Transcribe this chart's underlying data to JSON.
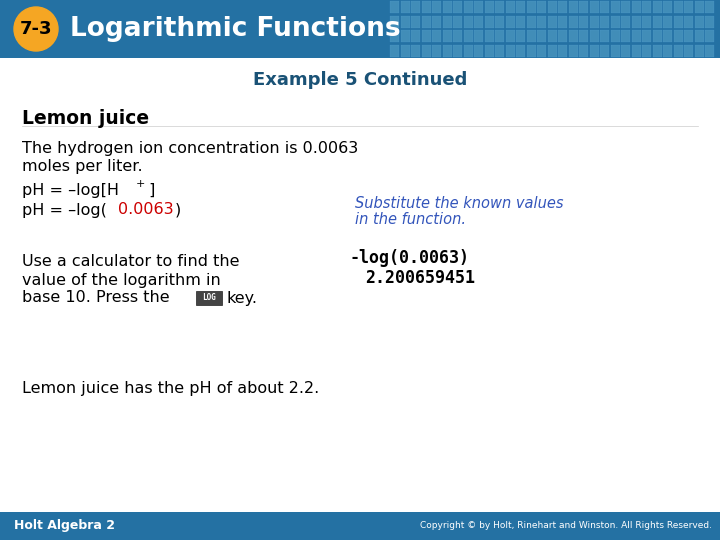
{
  "header_bg_color": "#2471A3",
  "header_text": "Logarithmic Functions",
  "header_text_color": "#FFFFFF",
  "badge_bg_color": "#F5A623",
  "badge_text": "7-3",
  "badge_text_color": "#000000",
  "subtitle_text": "Example 5 Continued",
  "subtitle_color": "#1A5276",
  "section_title": "Lemon juice",
  "body_color": "#000000",
  "line1": "The hydrogen ion concentration is 0.0063",
  "line2": "moles per liter.",
  "formula2_val": "0.0063",
  "formula2_val_color": "#CC0000",
  "italic_note1": "Substitute the known values",
  "italic_note2": "in the function.",
  "italic_color": "#3355BB",
  "calc_line1": "Use a calculator to find the",
  "calc_line2": "value of the logarithm in",
  "calc_line3a": "base 10. Press the",
  "calc_line3b": "key.",
  "log_key_text": "LOG",
  "log_key_bg": "#444444",
  "log_key_fg": "#FFFFFF",
  "calculator_line1": "-log(0.0063)",
  "calculator_line2": "2.200659451",
  "calculator_font_color": "#000000",
  "final_line": "Lemon juice has the pH of about 2.2.",
  "footer_left": "Holt Algebra 2",
  "footer_right": "Copyright © by Holt, Rinehart and Winston. All Rights Reserved.",
  "footer_bg": "#2471A3",
  "footer_text_color": "#FFFFFF",
  "bg_color": "#FFFFFF",
  "fig_width": 7.2,
  "fig_height": 5.4,
  "dpi": 100
}
